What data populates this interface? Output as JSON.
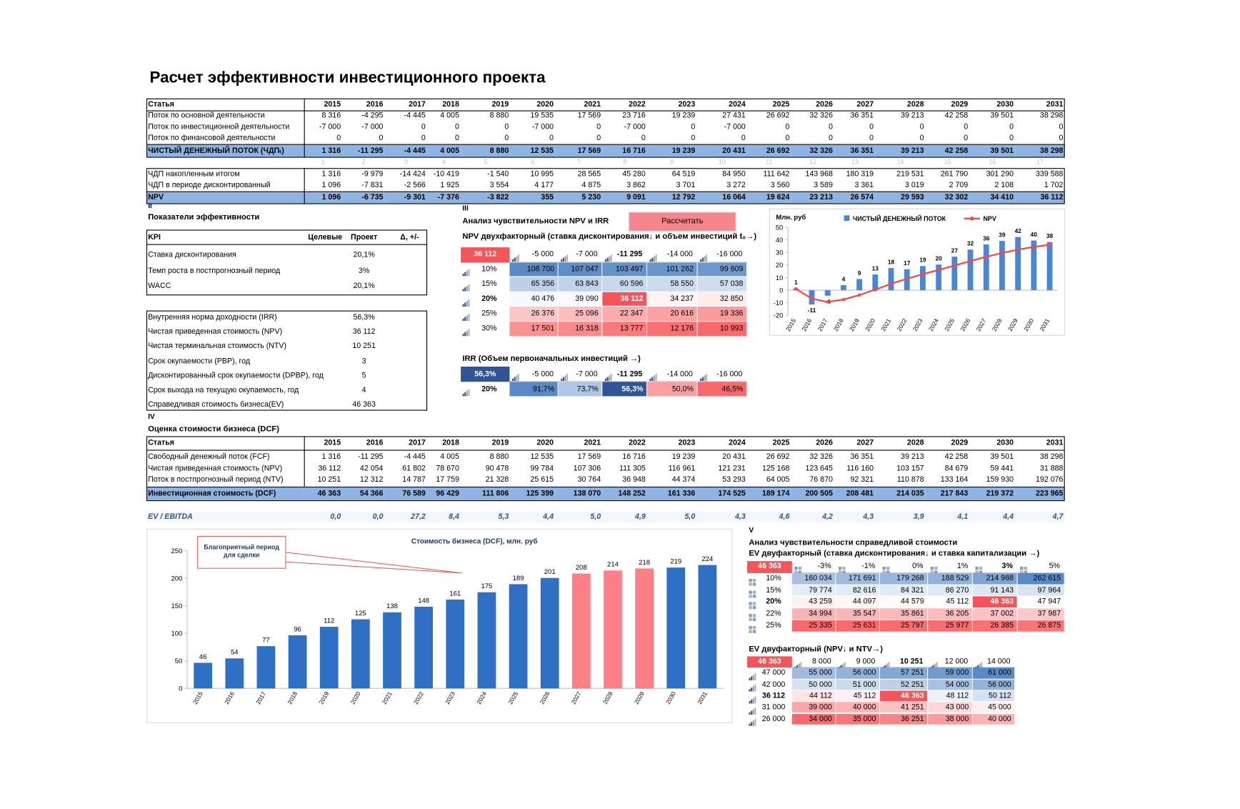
{
  "title": "Расчет эффективности инвестиционного проекта",
  "cashflow": {
    "header": [
      "Статья",
      "2015",
      "2016",
      "2017",
      "2018",
      "2019",
      "2020",
      "2021",
      "2022",
      "2023",
      "2024",
      "2025",
      "2026",
      "2027",
      "2028",
      "2029",
      "2030",
      "2031"
    ],
    "flow_rows": [
      {
        "label": "Поток по основной деятельности",
        "values": [
          "8 316",
          "-4 295",
          "-4 445",
          "4 005",
          "8 880",
          "19 535",
          "17 569",
          "23 716",
          "19 239",
          "27 431",
          "26 692",
          "32 326",
          "36 351",
          "39 213",
          "42 258",
          "39 501",
          "38 298"
        ]
      },
      {
        "label": "Поток по инвестиционной деятельности",
        "values": [
          "-7 000",
          "-7 000",
          "0",
          "0",
          "0",
          "-7 000",
          "0",
          "-7 000",
          "0",
          "-7 000",
          "0",
          "0",
          "0",
          "0",
          "0",
          "0",
          "0"
        ]
      },
      {
        "label": "Поток по финансовой деятельности",
        "values": [
          "0",
          "0",
          "0",
          "0",
          "0",
          "0",
          "0",
          "0",
          "0",
          "0",
          "0",
          "0",
          "0",
          "0",
          "0",
          "0",
          "0"
        ]
      },
      {
        "label": "ЧИСТЫЙ ДЕНЕЖНЫЙ ПОТОК (ЧДПₜ)",
        "values": [
          "1 316",
          "-11 295",
          "-4 445",
          "4 005",
          "8 880",
          "12 535",
          "17 569",
          "16 716",
          "19 239",
          "20 431",
          "26 692",
          "32 326",
          "36 351",
          "39 213",
          "42 258",
          "39 501",
          "38 298"
        ]
      }
    ],
    "index_row": [
      "1",
      "2",
      "3",
      "4",
      "5",
      "6",
      "7",
      "8",
      "9",
      "10",
      "11",
      "12",
      "13",
      "14",
      "15",
      "16",
      "17"
    ],
    "npv_rows": [
      {
        "label": "ЧДП накопленным итогом",
        "values": [
          "1 316",
          "-9 979",
          "-14 424",
          "-10 419",
          "-1 540",
          "10 995",
          "28 565",
          "45 280",
          "64 519",
          "84 950",
          "111 642",
          "143 968",
          "180 319",
          "219 531",
          "261 790",
          "301 290",
          "339 588"
        ]
      },
      {
        "label": "ЧДП в периоде дисконтированный",
        "values": [
          "1 096",
          "-7 831",
          "-2 566",
          "1 925",
          "3 554",
          "4 177",
          "4 875",
          "3 862",
          "3 701",
          "3 272",
          "3 560",
          "3 589",
          "3 361",
          "3 019",
          "2 709",
          "2 108",
          "1 702"
        ]
      },
      {
        "label": "NPV",
        "values": [
          "1 096",
          "-6 735",
          "-9 301",
          "-7 376",
          "-3 822",
          "355",
          "5 230",
          "9 091",
          "12 792",
          "16 064",
          "19 624",
          "23 213",
          "26 574",
          "29 593",
          "32 302",
          "34 410",
          "36 112"
        ]
      }
    ]
  },
  "kpi": {
    "section": "II",
    "title": "Показатели эффективности",
    "header": [
      "KPI",
      "Целевые",
      "Проект",
      "Δ, +/-"
    ],
    "rows": [
      {
        "label": "Ставка дисконтирования",
        "project": "20,1%"
      },
      {
        "label": "Темп роста в постпрогнозный период",
        "project": "3%"
      },
      {
        "label": "WACC",
        "project": "20,1%"
      }
    ],
    "indicators": [
      {
        "label": "Внутренняя норма доходности (IRR)",
        "value": "56,3%"
      },
      {
        "label": "Чистая приведенная стоимость (NPV)",
        "value": "36 112"
      },
      {
        "label": "Чистая терминальная стоимость (NTV)",
        "value": "10 251"
      },
      {
        "label": "Срок окупаемости (PBP), год",
        "value": "3"
      },
      {
        "label": "Дисконтированный срок окупаемости (DPBP), год",
        "value": "5"
      },
      {
        "label": "Срок выхода на текущую окупаемость, год",
        "value": "4"
      },
      {
        "label": "Справедливая стоимость бизнеса(EV)",
        "value": "46 363"
      }
    ]
  },
  "sensitivity": {
    "section": "III",
    "title": "Анализ чувствительности  NPV и IRR",
    "button": "Рассчитать",
    "npv": {
      "title": "NPV двухфакторный (ставка дисконтирования↓ и объем инвестиций t₀→)",
      "highlight_color": "#f4555a",
      "corner": "36 112",
      "columns": [
        "-5 000",
        "-7 000",
        "-11 295",
        "-14 000",
        "-16 000"
      ],
      "rows": [
        {
          "label": "10%",
          "values": [
            "108 700",
            "107 047",
            "103 497",
            "101 262",
            "99 609"
          ]
        },
        {
          "label": "15%",
          "values": [
            "65 356",
            "63 843",
            "60 596",
            "58 550",
            "57 038"
          ]
        },
        {
          "label": "20%",
          "values": [
            "40 476",
            "39 090",
            "36 112",
            "34 237",
            "32 850"
          ]
        },
        {
          "label": "25%",
          "values": [
            "26 376",
            "25 096",
            "22 347",
            "20 616",
            "19 336"
          ]
        },
        {
          "label": "30%",
          "values": [
            "17 501",
            "16 318",
            "13 777",
            "12 176",
            "10 993"
          ]
        }
      ]
    },
    "irr": {
      "title": "IRR (Объем первоначальных инвестиций →)",
      "highlight_color": "#2f5597",
      "corner": "56,3%",
      "columns": [
        "-5 000",
        "-7 000",
        "-11 295",
        "-14 000",
        "-16 000"
      ],
      "rows": [
        {
          "label": "20%",
          "values": [
            "91,7%",
            "73,7%",
            "56,3%",
            "50,0%",
            "46,5%"
          ]
        }
      ]
    }
  },
  "dcf": {
    "section": "IV",
    "title": "Оценка стоимости бизнеса (DCF)",
    "header": [
      "Статья",
      "2015",
      "2016",
      "2017",
      "2018",
      "2019",
      "2020",
      "2021",
      "2022",
      "2023",
      "2024",
      "2025",
      "2026",
      "2027",
      "2028",
      "2029",
      "2030",
      "2031"
    ],
    "rows": [
      {
        "label": "Свободный денежный поток (FCF)",
        "values": [
          "1 316",
          "-11 295",
          "-4 445",
          "4 005",
          "8 880",
          "12 535",
          "17 569",
          "16 716",
          "19 239",
          "20 431",
          "26 692",
          "32 326",
          "36 351",
          "39 213",
          "42 258",
          "39 501",
          "38 298"
        ]
      },
      {
        "label": "Чистая приведенная стоимость (NPV)",
        "values": [
          "36 112",
          "42 054",
          "61 802",
          "78 670",
          "90 478",
          "99 784",
          "107 306",
          "111 305",
          "116 961",
          "121 231",
          "125 168",
          "123 645",
          "116 160",
          "103 157",
          "84 679",
          "59 441",
          "31 888"
        ]
      },
      {
        "label": "Поток в постпрогнозный период (NTV)",
        "values": [
          "10 251",
          "12 312",
          "14 787",
          "17 759",
          "21 328",
          "25 615",
          "30 764",
          "36 948",
          "44 374",
          "53 293",
          "64 005",
          "76 870",
          "92 321",
          "110 878",
          "133 164",
          "159 930",
          "192 076"
        ]
      },
      {
        "label": "Инвестиционная стоимость (DCF)",
        "values": [
          "46 363",
          "54 366",
          "76 589",
          "96 429",
          "111 806",
          "125 399",
          "138 070",
          "148 252",
          "161 336",
          "174 525",
          "189 174",
          "200 505",
          "208 481",
          "214 035",
          "217 843",
          "219 372",
          "223 965"
        ]
      }
    ],
    "ratio": {
      "label": "EV / EBITDA",
      "values": [
        "0,0",
        "0,0",
        "27,2",
        "8,4",
        "5,3",
        "4,4",
        "5,0",
        "4,9",
        "5,0",
        "4,3",
        "4,6",
        "4,2",
        "4,3",
        "3,9",
        "4,1",
        "4,4",
        "4,7"
      ]
    }
  },
  "ev_sensitivity": {
    "section": "V",
    "title": "Анализ чувствительности справедливой стоимости",
    "by_rates": {
      "title": "EV двуфакторный (ставка дисконтирования↓ и ставка капитализации →)",
      "highlight_color": "#f4555a",
      "corner": "46 363",
      "columns": [
        "-3%",
        "-1%",
        "0%",
        "1%",
        "3%",
        "5%"
      ],
      "rows": [
        {
          "label": "10%",
          "values": [
            "160 034",
            "171 691",
            "179 268",
            "188 529",
            "214 988",
            "262 615"
          ]
        },
        {
          "label": "15%",
          "values": [
            "79 774",
            "82 616",
            "84 321",
            "86 270",
            "91 143",
            "97 964"
          ]
        },
        {
          "label": "20%",
          "values": [
            "43 259",
            "44 097",
            "44 579",
            "45 112",
            "46 363",
            "47 947"
          ]
        },
        {
          "label": "22%",
          "values": [
            "34 994",
            "35 547",
            "35 861",
            "36 205",
            "37 002",
            "37 987"
          ]
        },
        {
          "label": "25%",
          "values": [
            "25 335",
            "25 631",
            "25 797",
            "25 977",
            "26 385",
            "26 875"
          ]
        }
      ]
    },
    "by_npv_ntv": {
      "title": "EV двуфакторный (NPV↓ и NTV→)",
      "highlight_color": "#f4555a",
      "corner": "46 363",
      "columns": [
        "8 000",
        "9 000",
        "10 251",
        "12 000",
        "14 000"
      ],
      "rows": [
        {
          "label": "47 000",
          "values": [
            "55 000",
            "56 000",
            "57 251",
            "59 000",
            "61 000"
          ]
        },
        {
          "label": "42 000",
          "values": [
            "50 000",
            "51 000",
            "52 251",
            "54 000",
            "56 000"
          ]
        },
        {
          "label": "36 112",
          "values": [
            "44 112",
            "45 112",
            "46 363",
            "48 112",
            "50 112"
          ]
        },
        {
          "label": "31 000",
          "values": [
            "39 000",
            "40 000",
            "41 251",
            "43 000",
            "45 000"
          ]
        },
        {
          "label": "26 000",
          "values": [
            "34 000",
            "35 000",
            "36 251",
            "38 000",
            "40 000"
          ]
        }
      ]
    }
  },
  "chart_data": [
    {
      "type": "bar",
      "ylabel": "Млн. руб",
      "categories": [
        "2015",
        "2016",
        "2017",
        "2018",
        "2019",
        "2020",
        "2021",
        "2022",
        "2023",
        "2024",
        "2025",
        "2026",
        "2027",
        "2028",
        "2029",
        "2030",
        "2031"
      ],
      "series": [
        {
          "name": "ЧИСТЫЙ ДЕНЕЖНЫЙ ПОТОК",
          "type": "bar",
          "color": "#4a86d4",
          "values": [
            1.3,
            -11.3,
            -4.4,
            4.0,
            8.9,
            12.5,
            17.6,
            16.7,
            19.2,
            20.4,
            26.7,
            32.3,
            36.4,
            39.2,
            42.3,
            39.5,
            38.3
          ],
          "value_labels": [
            "1",
            "-11",
            "-4",
            "4",
            "9",
            "13",
            "18",
            "17",
            "19",
            "20",
            "27",
            "32",
            "36",
            "39",
            "42",
            "40",
            "38"
          ]
        },
        {
          "name": "NPV",
          "type": "line",
          "color": "#ef4b4b",
          "values": [
            1.1,
            -6.7,
            -9.3,
            -7.4,
            -3.8,
            0.4,
            5.2,
            9.1,
            12.8,
            16.1,
            19.6,
            23.2,
            26.6,
            29.6,
            32.3,
            34.4,
            36.1
          ]
        }
      ],
      "ylim": [
        -20,
        50
      ],
      "yticks": [
        -20,
        -10,
        0,
        10,
        20,
        30,
        40,
        50
      ]
    },
    {
      "type": "bar",
      "title": "Стоимость бизнеса (DCF), млн. руб",
      "annotation": [
        "Благоприятный период",
        "для сделки"
      ],
      "categories": [
        "2015",
        "2016",
        "2017",
        "2018",
        "2019",
        "2020",
        "2021",
        "2022",
        "2023",
        "2024",
        "2025",
        "2026",
        "2027",
        "2028",
        "2029",
        "2030",
        "2031"
      ],
      "values": [
        46.4,
        54.4,
        76.6,
        96.4,
        111.8,
        125.4,
        138.1,
        148.3,
        161.3,
        174.5,
        189.2,
        200.5,
        208.5,
        214.0,
        217.8,
        219.4,
        224.0
      ],
      "value_labels": [
        "46",
        "54",
        "77",
        "96",
        "112",
        "125",
        "138",
        "148",
        "161",
        "175",
        "189",
        "201",
        "208",
        "214",
        "218",
        "219",
        "224"
      ],
      "colors": [
        "#2f6fc4",
        "#2f6fc4",
        "#2f6fc4",
        "#2f6fc4",
        "#2f6fc4",
        "#2f6fc4",
        "#2f6fc4",
        "#2f6fc4",
        "#2f6fc4",
        "#2f6fc4",
        "#2f6fc4",
        "#2f6fc4",
        "#ff7f86",
        "#ff7f86",
        "#ff7f86",
        "#2f6fc4",
        "#2f6fc4"
      ],
      "ylim": [
        0,
        250
      ],
      "yticks": [
        0,
        50,
        100,
        150,
        200,
        250
      ]
    }
  ]
}
